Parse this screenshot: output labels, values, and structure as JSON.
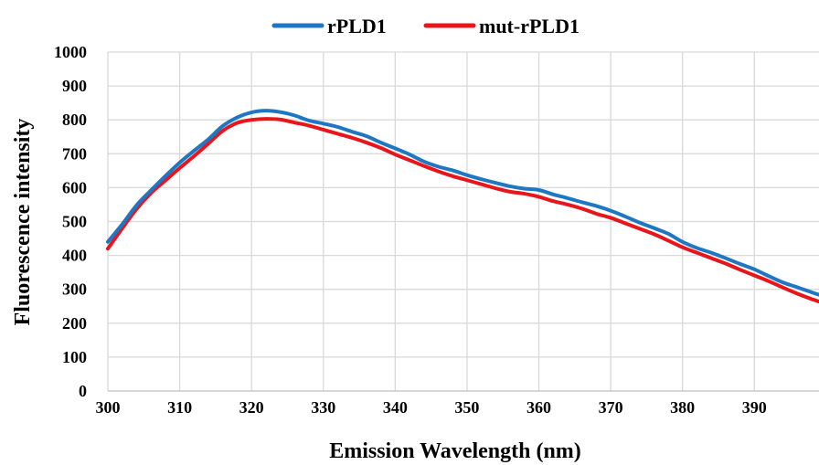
{
  "chart_data": {
    "type": "line",
    "title": "",
    "xlabel": "Emission Wavelength (nm)",
    "ylabel": "Fluorescence intensity",
    "xlim": [
      300,
      399
    ],
    "ylim": [
      0,
      1000
    ],
    "x_ticks": [
      300,
      310,
      320,
      330,
      340,
      350,
      360,
      370,
      380,
      390
    ],
    "y_ticks": [
      0,
      100,
      200,
      300,
      400,
      500,
      600,
      700,
      800,
      900,
      1000
    ],
    "grid": true,
    "legend_position": "top",
    "series": [
      {
        "name": "rPLD1",
        "color": "#1F77C4",
        "x": [
          300,
          302,
          304,
          306,
          308,
          310,
          312,
          314,
          316,
          318,
          320,
          322,
          324,
          326,
          328,
          330,
          332,
          334,
          336,
          338,
          340,
          342,
          344,
          346,
          348,
          350,
          352,
          354,
          356,
          358,
          360,
          362,
          364,
          366,
          368,
          370,
          372,
          374,
          376,
          378,
          380,
          382,
          384,
          386,
          388,
          390,
          392,
          394,
          396,
          398,
          399
        ],
        "y": [
          440,
          492,
          548,
          592,
          634,
          674,
          709,
          743,
          782,
          807,
          822,
          827,
          823,
          813,
          798,
          789,
          779,
          765,
          752,
          733,
          716,
          698,
          677,
          662,
          651,
          637,
          625,
          614,
          604,
          597,
          593,
          580,
          569,
          557,
          546,
          532,
          515,
          497,
          481,
          464,
          440,
          422,
          408,
          392,
          375,
          359,
          339,
          320,
          306,
          291,
          284
        ]
      },
      {
        "name": "mut-rPLD1",
        "color": "#E8151B",
        "x": [
          300,
          302,
          304,
          306,
          308,
          310,
          312,
          314,
          316,
          318,
          320,
          322,
          324,
          326,
          328,
          330,
          332,
          334,
          336,
          338,
          340,
          342,
          344,
          346,
          348,
          350,
          352,
          354,
          356,
          358,
          360,
          362,
          364,
          366,
          368,
          370,
          372,
          374,
          376,
          378,
          380,
          382,
          384,
          386,
          388,
          390,
          392,
          394,
          396,
          398,
          399
        ],
        "y": [
          420,
          480,
          537,
          584,
          621,
          658,
          693,
          730,
          768,
          791,
          800,
          803,
          801,
          792,
          783,
          771,
          759,
          747,
          733,
          717,
          698,
          681,
          664,
          648,
          634,
          622,
          610,
          598,
          588,
          582,
          573,
          560,
          550,
          538,
          523,
          511,
          495,
          479,
          463,
          444,
          424,
          408,
          392,
          376,
          358,
          341,
          324,
          305,
          287,
          271,
          264
        ]
      }
    ]
  }
}
